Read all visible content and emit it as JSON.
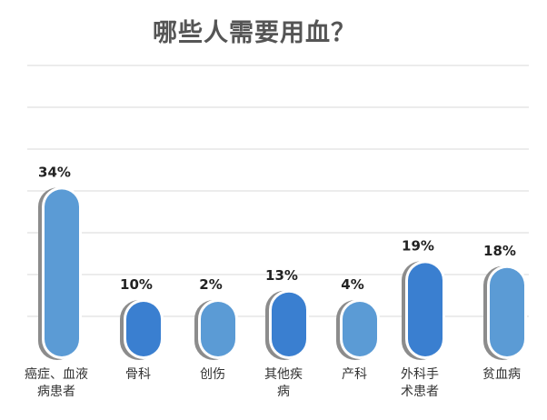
{
  "chart_data": {
    "type": "bar",
    "title": "哪些人需要用血？",
    "categories": [
      [
        "癌症、血液",
        "病患者"
      ],
      [
        "骨科"
      ],
      [
        "创伤"
      ],
      [
        "其他疾",
        "病"
      ],
      [
        "产科"
      ],
      [
        "外科手",
        "术患者"
      ],
      [
        "贫血病"
      ]
    ],
    "values": [
      34,
      10,
      2,
      13,
      4,
      19,
      18
    ],
    "value_labels": [
      "34%",
      "10%",
      "2%",
      "13%",
      "4%",
      "19%",
      "18%"
    ],
    "bar_colors": [
      "#5b9bd5",
      "#3a7fd0",
      "#5b9bd5",
      "#3a7fd0",
      "#5b9bd5",
      "#3a7fd0",
      "#5b9bd5"
    ],
    "shadow_color": "#8c8c8c",
    "grid": true,
    "grid_color": "#d9d9d9",
    "legend": "none"
  }
}
